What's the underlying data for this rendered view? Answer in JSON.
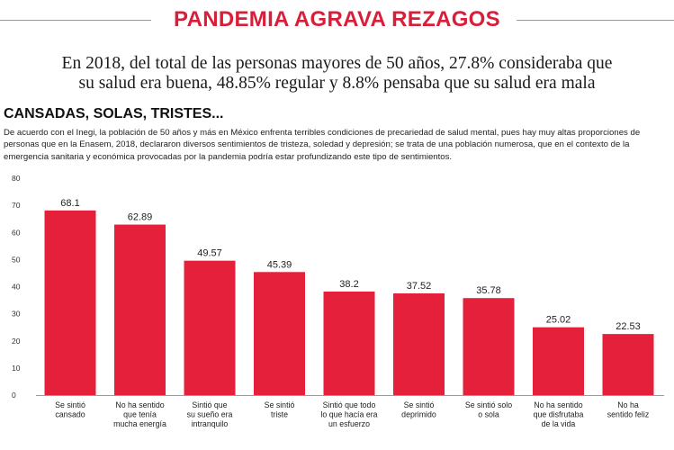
{
  "header": {
    "title": "PANDEMIA AGRAVA REZAGOS",
    "subtitle_line1": "En 2018, del total de las personas mayores de 50 años, 27.8% consideraba que",
    "subtitle_line2": "su salud  era buena, 48.85%  regular y 8.8% pensaba que su salud era mala"
  },
  "section": {
    "heading": "CANSADAS, SOLAS, TRISTES...",
    "body": "De acuerdo con el Inegi, la población de 50 años y más en México enfrenta terribles condiciones de precariedad de salud mental, pues hay muy altas proporciones de personas que en la Enasem, 2018, declararon diversos sentimientos de tristeza, soledad y depresión; se trata de una población numerosa, que en el contexto de la emergencia sanitaria y económica provocadas por la pandemia podría estar profundizando este tipo de sentimientos."
  },
  "colors": {
    "bar": "#e4203b",
    "title": "#d81f3a",
    "grid": "#c8c8c8"
  },
  "chart_data": {
    "type": "bar",
    "categories": [
      [
        "Se sintió",
        "cansado"
      ],
      [
        "No ha sentido",
        "que tenía",
        "mucha energía"
      ],
      [
        "Sintió que",
        "su sueño era",
        "intranquilo"
      ],
      [
        "Se sintió",
        "triste"
      ],
      [
        "Sintió que todo",
        "lo que hacía era",
        "un esfuerzo"
      ],
      [
        "Se sintió",
        "deprimido"
      ],
      [
        "Se sintió solo",
        "o sola"
      ],
      [
        "No ha sentido",
        "que disfrutaba",
        "de la vida"
      ],
      [
        "No ha",
        "sentido feliz"
      ]
    ],
    "values": [
      68.1,
      62.89,
      49.57,
      45.39,
      38.2,
      37.52,
      35.78,
      25.02,
      22.53
    ],
    "value_labels": [
      "68.1",
      "62.89",
      "49.57",
      "45.39",
      "38.2",
      "37.52",
      "35.78",
      "25.02",
      "22.53"
    ],
    "y_ticks": [
      "0",
      "10",
      "20",
      "30",
      "40",
      "50",
      "60",
      "70",
      "80"
    ],
    "ylim": [
      0,
      80
    ],
    "grid": false,
    "title": "",
    "xlabel": "",
    "ylabel": ""
  }
}
